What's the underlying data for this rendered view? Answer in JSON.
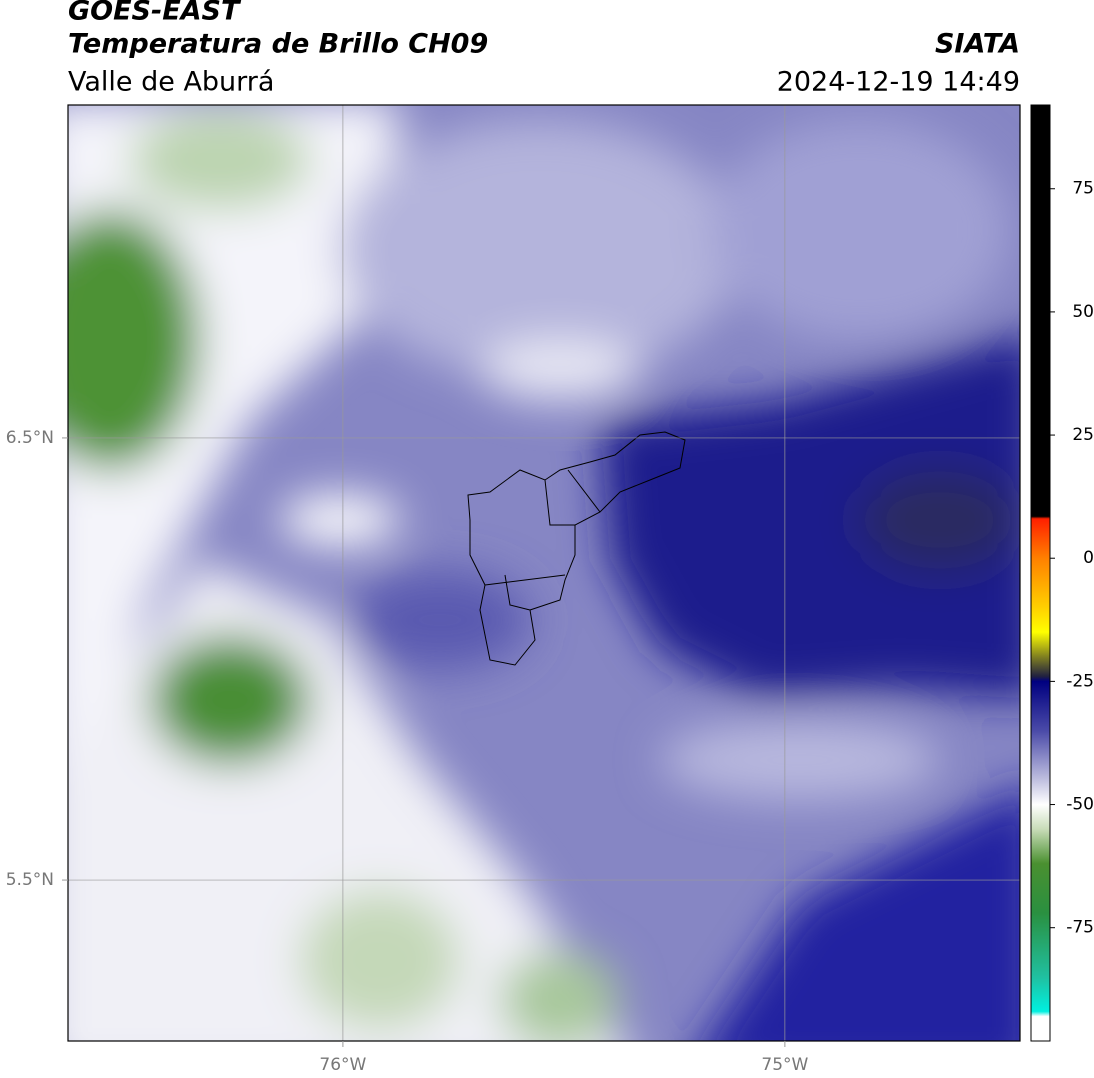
{
  "header": {
    "title": "GOES-EAST",
    "subtitle": "Temperatura de Brillo CH09",
    "region": "Valle de Aburrá",
    "source": "SIATA",
    "datetime": "2024-12-19 14:49"
  },
  "map": {
    "xlim": [
      -76.622,
      -74.468
    ],
    "ylim": [
      5.136,
      7.253
    ],
    "xticks": [
      {
        "value": -76,
        "label": "76°W"
      },
      {
        "value": -75,
        "label": "75°W"
      }
    ],
    "yticks": [
      {
        "value": 6.5,
        "label": "6.5°N"
      },
      {
        "value": 5.5,
        "label": "5.5°N"
      }
    ],
    "grid": true
  },
  "colorbar": {
    "lim": [
      -98,
      92
    ],
    "ticks": [
      75,
      50,
      25,
      0,
      -25,
      -50,
      -75
    ],
    "stops": [
      {
        "value": 92,
        "color": "#000000"
      },
      {
        "value": 8.5,
        "color": "#000000"
      },
      {
        "value": 8,
        "color": "#ff2000"
      },
      {
        "value": 0,
        "color": "#ff8000"
      },
      {
        "value": -10,
        "color": "#ffd000"
      },
      {
        "value": -15,
        "color": "#ffff00"
      },
      {
        "value": -20,
        "color": "#808020"
      },
      {
        "value": -24,
        "color": "#202040"
      },
      {
        "value": -25,
        "color": "#000080"
      },
      {
        "value": -35,
        "color": "#4a4aa8"
      },
      {
        "value": -45,
        "color": "#c0c0e0"
      },
      {
        "value": -50,
        "color": "#ffffff"
      },
      {
        "value": -55,
        "color": "#c8dcb8"
      },
      {
        "value": -62,
        "color": "#4a9030"
      },
      {
        "value": -72,
        "color": "#2a9040"
      },
      {
        "value": -85,
        "color": "#20c0a0"
      },
      {
        "value": -92,
        "color": "#00f0e0"
      },
      {
        "value": -93,
        "color": "#ffffff"
      },
      {
        "value": -98,
        "color": "#ffffff"
      }
    ]
  }
}
